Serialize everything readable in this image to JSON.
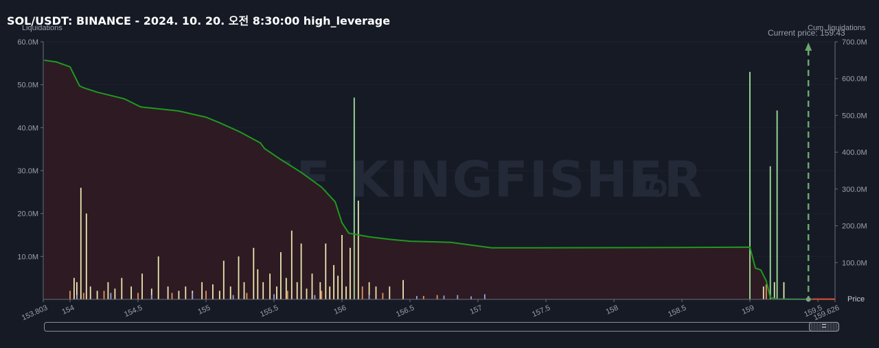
{
  "title": "SOL/USDT: BINANCE - 2024. 10. 20. 오전 8:30:00 high_leverage",
  "watermark": {
    "brand": "THE KINGFISHER",
    "suffix": ".IO"
  },
  "colors": {
    "background": "#161a25",
    "cum_line": "#1f9a1f",
    "cum_fill": "#2e1a22",
    "current_price": "#6aa86a",
    "price_marker": "#e03a3a"
  },
  "chart_data": {
    "type": "bar",
    "xlabel": "Price",
    "ylabel_left": "Liquidations",
    "ylabel_right": "Cum. liquidations",
    "xlim": [
      153.803,
      159.626
    ],
    "ylim_left": [
      0,
      60000000
    ],
    "ylim_right": [
      0,
      700000000
    ],
    "x_ticks": [
      "153.803",
      "154",
      "154.5",
      "155",
      "155.5",
      "156",
      "156.5",
      "157",
      "157.5",
      "158",
      "158.5",
      "159",
      "159.5",
      "159.626"
    ],
    "y_ticks_left": [
      "10.0M",
      "20.0M",
      "30.0M",
      "40.0M",
      "50.0M",
      "60.0M"
    ],
    "y_ticks_right": [
      "100.0M",
      "200.0M",
      "300.0M",
      "400.0M",
      "500.0M",
      "600.0M",
      "700.0M"
    ],
    "current_price": 159.43,
    "current_price_label": "Current price: 159.43",
    "cumulative": {
      "x": [
        153.81,
        153.9,
        154.0,
        154.07,
        154.1,
        154.2,
        154.4,
        154.52,
        154.8,
        155.0,
        155.1,
        155.25,
        155.4,
        155.43,
        155.55,
        155.7,
        155.85,
        155.95,
        156.0,
        156.05,
        156.2,
        156.35,
        156.5,
        156.8,
        157.1,
        158.0,
        158.5,
        159.0,
        159.04,
        159.08,
        159.12,
        159.15,
        159.2,
        159.3,
        159.626
      ],
      "y": [
        650000000,
        645000000,
        632000000,
        580000000,
        575000000,
        563000000,
        545000000,
        523000000,
        512000000,
        495000000,
        480000000,
        455000000,
        425000000,
        410000000,
        380000000,
        345000000,
        305000000,
        265000000,
        208000000,
        180000000,
        170000000,
        163000000,
        158000000,
        155000000,
        140000000,
        140500000,
        141000000,
        142000000,
        85000000,
        80000000,
        50000000,
        5000000,
        1000000,
        500000,
        0
      ]
    },
    "series": [
      {
        "name": "bars_light",
        "color": "#e9e9b0",
        "values": [
          [
            154.03,
            5000000
          ],
          [
            154.05,
            4000000
          ],
          [
            154.08,
            26000000
          ],
          [
            154.12,
            20000000
          ],
          [
            154.15,
            3000000
          ],
          [
            154.2,
            2000000
          ],
          [
            154.28,
            4000000
          ],
          [
            154.33,
            2500000
          ],
          [
            154.38,
            5000000
          ],
          [
            154.45,
            3000000
          ],
          [
            154.53,
            6000000
          ],
          [
            154.6,
            2500000
          ],
          [
            154.65,
            10000000
          ],
          [
            154.72,
            3000000
          ],
          [
            154.8,
            2000000
          ],
          [
            154.85,
            3000000
          ],
          [
            154.9,
            2000000
          ],
          [
            154.97,
            4000000
          ],
          [
            155.05,
            3500000
          ],
          [
            155.1,
            2000000
          ],
          [
            155.13,
            9000000
          ],
          [
            155.18,
            3000000
          ],
          [
            155.24,
            10000000
          ],
          [
            155.28,
            4000000
          ],
          [
            155.35,
            12000000
          ],
          [
            155.38,
            7000000
          ],
          [
            155.42,
            4000000
          ],
          [
            155.47,
            6000000
          ],
          [
            155.52,
            3000000
          ],
          [
            155.55,
            11000000
          ],
          [
            155.59,
            5000000
          ],
          [
            155.63,
            16000000
          ],
          [
            155.67,
            4000000
          ],
          [
            155.7,
            13000000
          ],
          [
            155.74,
            2500000
          ],
          [
            155.78,
            6000000
          ],
          [
            155.84,
            4000000
          ],
          [
            155.88,
            13000000
          ],
          [
            155.91,
            3000000
          ],
          [
            155.94,
            8000000
          ],
          [
            155.97,
            5500000
          ],
          [
            156.0,
            15000000
          ],
          [
            156.03,
            3000000
          ],
          [
            156.06,
            12000000
          ],
          [
            156.12,
            23000000
          ],
          [
            156.2,
            4000000
          ],
          [
            156.25,
            3000000
          ],
          [
            156.35,
            3000000
          ],
          [
            156.45,
            4500000
          ],
          [
            159.1,
            3000000
          ],
          [
            159.18,
            4000000
          ],
          [
            159.25,
            4000000
          ]
        ]
      },
      {
        "name": "bars_green",
        "color": "#a3e39c",
        "values": [
          [
            156.09,
            47000000
          ],
          [
            159.0,
            53000000
          ],
          [
            159.15,
            31000000
          ],
          [
            159.2,
            44000000
          ]
        ]
      },
      {
        "name": "bars_orange",
        "color": "#e0945e",
        "values": [
          [
            154.0,
            2000000
          ],
          [
            154.1,
            1500000
          ],
          [
            154.25,
            2000000
          ],
          [
            154.5,
            1500000
          ],
          [
            154.75,
            1500000
          ],
          [
            155.0,
            2000000
          ],
          [
            155.3,
            1500000
          ],
          [
            155.6,
            2000000
          ],
          [
            155.85,
            2000000
          ],
          [
            156.15,
            3000000
          ],
          [
            156.3,
            1500000
          ],
          [
            156.6,
            800000
          ],
          [
            156.7,
            1000000
          ],
          [
            159.12,
            3500000
          ]
        ]
      },
      {
        "name": "bars_blue",
        "color": "#8fa7d8",
        "values": [
          [
            154.05,
            1000000
          ],
          [
            154.3,
            1500000
          ],
          [
            154.6,
            1000000
          ],
          [
            154.9,
            1500000
          ],
          [
            155.2,
            1000000
          ],
          [
            155.5,
            1200000
          ],
          [
            155.8,
            1000000
          ],
          [
            156.2,
            1000000
          ],
          [
            156.55,
            800000
          ],
          [
            156.75,
            900000
          ],
          [
            156.85,
            1000000
          ],
          [
            156.95,
            700000
          ],
          [
            157.05,
            1200000
          ]
        ]
      }
    ]
  }
}
